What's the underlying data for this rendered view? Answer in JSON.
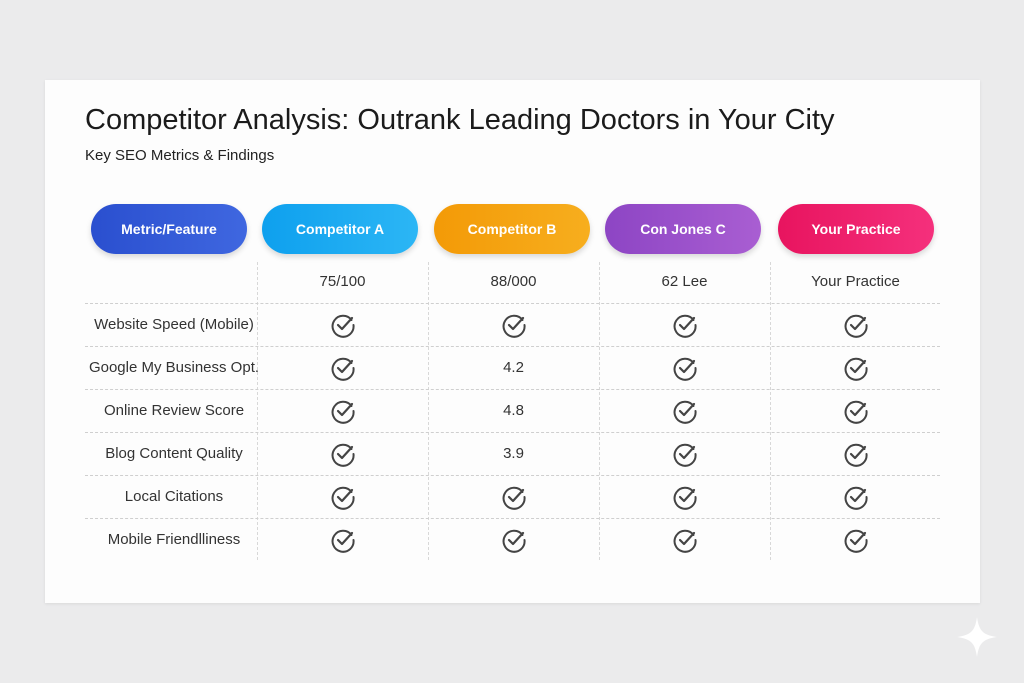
{
  "header": {
    "title": "Competitor Analysis: Outrank Leading Doctors in Your City",
    "subtitle": "Key SEO Metrics & Findings"
  },
  "table": {
    "headers": [
      "Metric/Feature",
      "Competitor A",
      "Competitor B",
      "Con Jones C",
      "Your Practice"
    ],
    "scores": [
      "75/100",
      "88/000",
      "62 Lee",
      "Your Practice"
    ],
    "rows": [
      {
        "metric": "Website Speed (Mobile)",
        "cells": [
          null,
          null,
          null,
          null
        ]
      },
      {
        "metric": "Google My Business Opt.",
        "cells": [
          null,
          "4.2",
          null,
          null
        ]
      },
      {
        "metric": "Online Review Score",
        "cells": [
          null,
          "4.8",
          null,
          null
        ]
      },
      {
        "metric": "Blog Content Quality",
        "cells": [
          null,
          "3.9",
          null,
          null
        ]
      },
      {
        "metric": "Local Citations",
        "cells": [
          null,
          null,
          null,
          null
        ]
      },
      {
        "metric": "Mobile Friendlliness",
        "cells": [
          null,
          null,
          null,
          null
        ]
      }
    ]
  }
}
